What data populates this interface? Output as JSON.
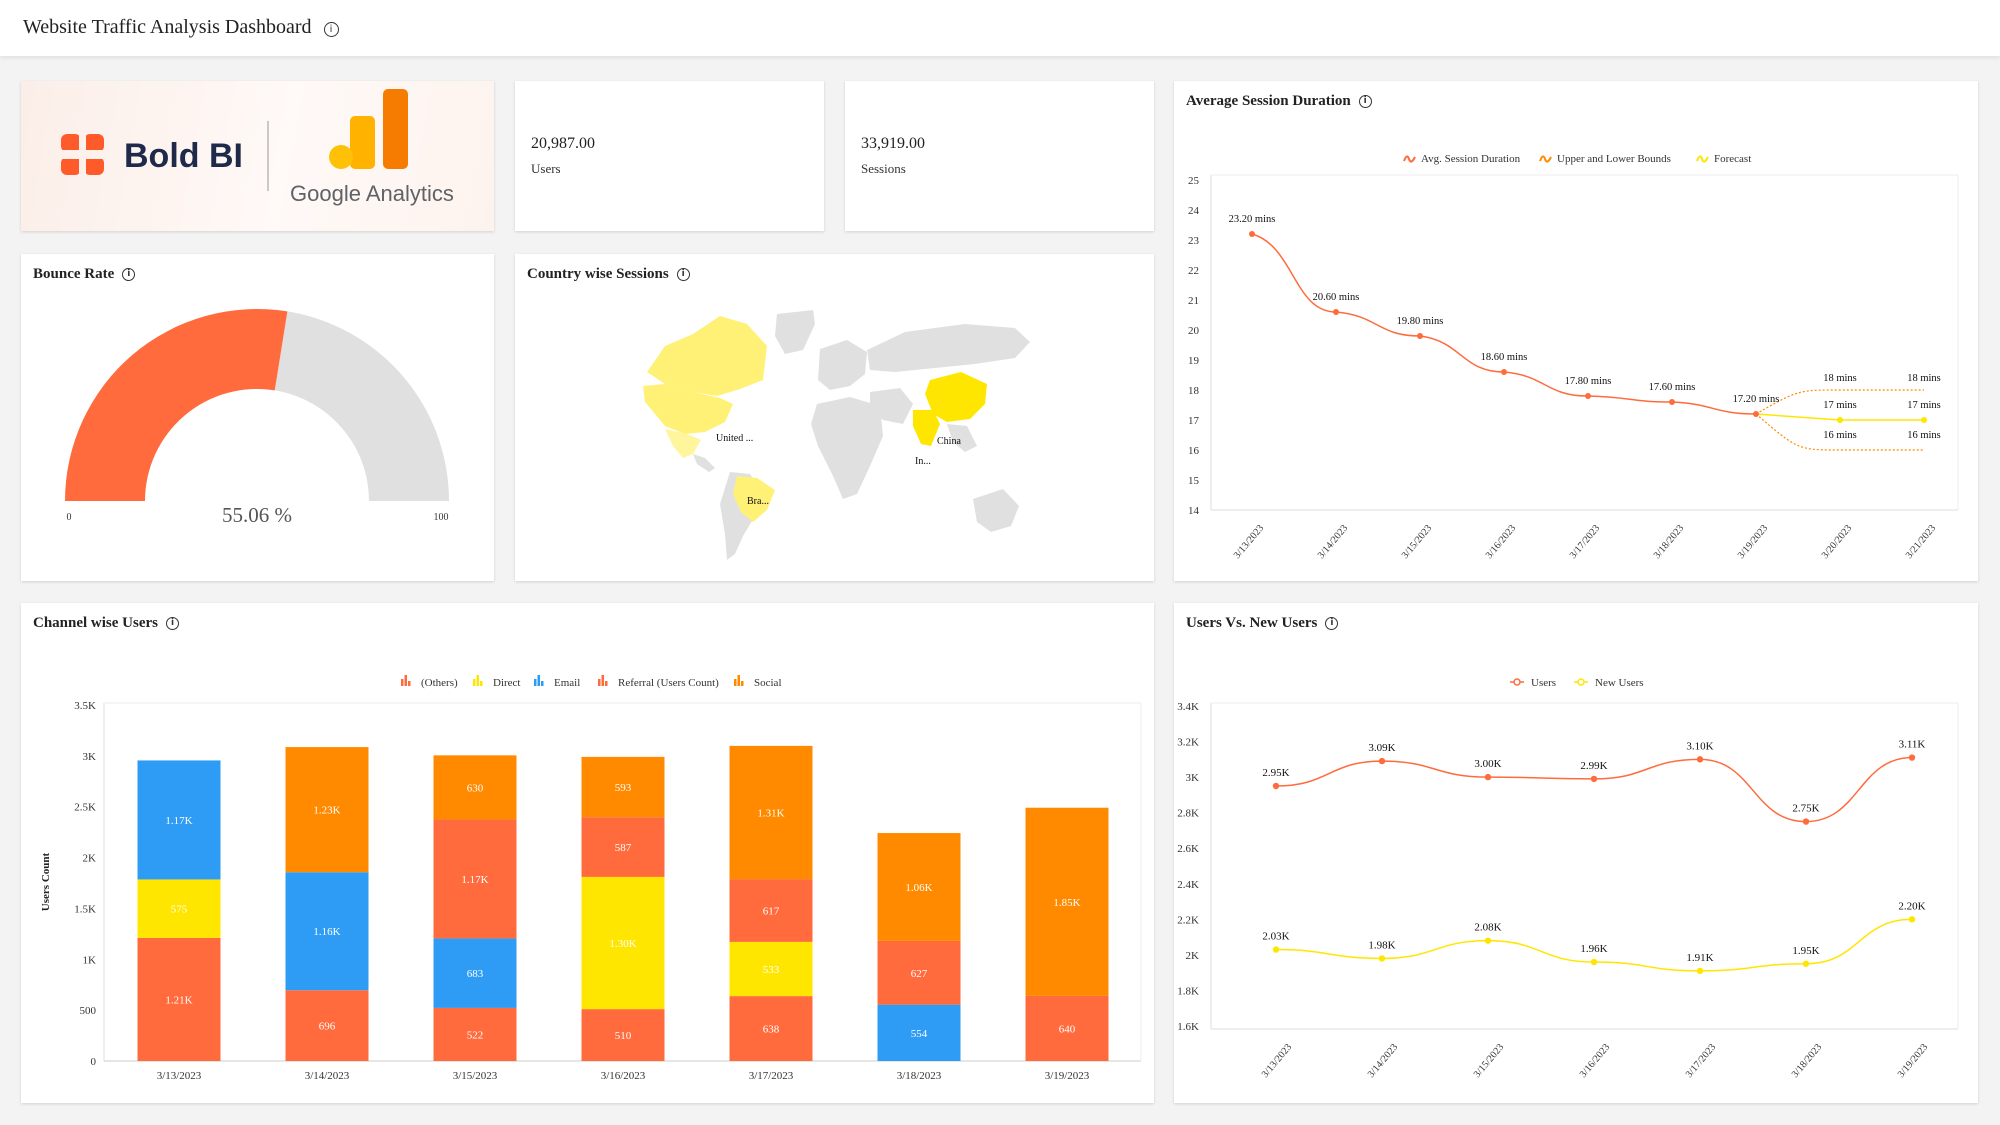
{
  "dashboard": {
    "title": "Website Traffic Analysis Dashboard"
  },
  "logos": {
    "boldbi": "Bold BI",
    "google_analytics": "Google Analytics"
  },
  "kpis": [
    {
      "value": "20,987.00",
      "label": "Users"
    },
    {
      "value": "33,919.00",
      "label": "Sessions"
    }
  ],
  "colors": {
    "orange_red": "#ff6b3d",
    "yellow": "#ffe600",
    "blue": "#2e9cf4",
    "orange": "#ff8a00",
    "gray": "#e0e0e0",
    "light_yellow": "#fff59d"
  },
  "bounce_rate": {
    "title": "Bounce Rate",
    "chart_data": {
      "type": "gauge",
      "value": 55.06,
      "min": 0,
      "max": 100,
      "display": "55.06 %",
      "min_label": "0",
      "max_label": "100"
    }
  },
  "country_sessions": {
    "title": "Country wise Sessions",
    "labels": [
      "United ...",
      "China",
      "In...",
      "Bra..."
    ]
  },
  "avg_session": {
    "title": "Average Session Duration",
    "legend": [
      "Avg. Session Duration",
      "Upper and Lower Bounds",
      "Forecast"
    ],
    "chart_data": {
      "type": "line",
      "x": [
        "3/13/2023",
        "3/14/2023",
        "3/15/2023",
        "3/16/2023",
        "3/17/2023",
        "3/18/2023",
        "3/19/2023",
        "3/20/2023",
        "3/21/2023"
      ],
      "y_ticks": [
        14,
        15,
        16,
        17,
        18,
        19,
        20,
        21,
        22,
        23,
        24,
        25
      ],
      "ylim": [
        14,
        25
      ],
      "series": [
        {
          "name": "Avg. Session Duration",
          "values": [
            23.2,
            20.6,
            19.8,
            18.6,
            17.8,
            17.6,
            17.2,
            null,
            null
          ],
          "labels": [
            "23.20 mins",
            "20.60 mins",
            "19.80 mins",
            "18.60 mins",
            "17.80 mins",
            "17.60 mins",
            "17.20 mins",
            "",
            ""
          ]
        },
        {
          "name": "Forecast",
          "values": [
            null,
            null,
            null,
            null,
            null,
            null,
            17.2,
            17,
            17
          ],
          "labels": [
            "",
            "",
            "",
            "",
            "",
            "",
            "",
            "17 mins",
            "17 mins"
          ]
        },
        {
          "name": "Upper and Lower Bounds",
          "upper": [
            null,
            null,
            null,
            null,
            null,
            null,
            17.2,
            18,
            18
          ],
          "lower": [
            null,
            null,
            null,
            null,
            null,
            null,
            17.2,
            16,
            16
          ],
          "upper_labels": [
            "",
            "",
            "",
            "",
            "",
            "",
            "",
            "18 mins",
            "18 mins"
          ],
          "lower_labels": [
            "",
            "",
            "",
            "",
            "",
            "",
            "",
            "16 mins",
            "16 mins"
          ]
        }
      ]
    }
  },
  "channel_users": {
    "title": "Channel wise Users",
    "legend": [
      "(Others)",
      "Direct",
      "Email",
      "Referral (Users Count)",
      "Social"
    ],
    "chart_data": {
      "type": "bar",
      "stacked": true,
      "categories": [
        "3/13/2023",
        "3/14/2023",
        "3/15/2023",
        "3/16/2023",
        "3/17/2023",
        "3/18/2023",
        "3/19/2023"
      ],
      "ylabel": "Users Count",
      "ylim": [
        0,
        3500
      ],
      "y_ticks": [
        "0",
        "500",
        "1K",
        "1.5K",
        "2K",
        "2.5K",
        "3K",
        "3.5K"
      ],
      "series": [
        {
          "name": "Referral (Users Count)",
          "values": [
            1210,
            696,
            522,
            510,
            638,
            627,
            640
          ],
          "labels": [
            "1.21K",
            "696",
            "522",
            "510",
            "638",
            "627",
            "640"
          ]
        },
        {
          "name": "Direct",
          "values": [
            575,
            0,
            0,
            1300,
            533,
            0,
            0
          ],
          "labels": [
            "575",
            "",
            "",
            "1.30K",
            "533",
            "",
            ""
          ]
        },
        {
          "name": "Email",
          "values": [
            1170,
            1160,
            683,
            0,
            0,
            554,
            0
          ],
          "labels": [
            "1.17K",
            "1.16K",
            "683",
            "",
            "",
            "554",
            ""
          ]
        },
        {
          "name": "(Others)",
          "values": [
            0,
            0,
            1170,
            587,
            617,
            0,
            0
          ],
          "labels": [
            "",
            "",
            "1.17K",
            "587",
            "617",
            "",
            ""
          ]
        },
        {
          "name": "Social",
          "values": [
            0,
            1230,
            630,
            593,
            1310,
            1060,
            1850
          ],
          "labels": [
            "",
            "1.23K",
            "630",
            "593",
            "1.31K",
            "1.06K",
            "1.85K"
          ]
        }
      ],
      "stack_order": [
        [
          0,
          1,
          2
        ],
        [
          0,
          2,
          4
        ],
        [
          0,
          2,
          3,
          4
        ],
        [
          0,
          1,
          3,
          4
        ],
        [
          0,
          1,
          3,
          4
        ],
        [
          2,
          0,
          4
        ],
        [
          0,
          4
        ]
      ]
    }
  },
  "users_new": {
    "title": "Users Vs. New Users",
    "legend": [
      "Users",
      "New Users"
    ],
    "chart_data": {
      "type": "line",
      "x": [
        "3/13/2023",
        "3/14/2023",
        "3/15/2023",
        "3/16/2023",
        "3/17/2023",
        "3/18/2023",
        "3/19/2023"
      ],
      "ylim": [
        1600,
        3400
      ],
      "y_ticks": [
        "1.6K",
        "1.8K",
        "2K",
        "2.2K",
        "2.4K",
        "2.6K",
        "2.8K",
        "3K",
        "3.2K",
        "3.4K"
      ],
      "series": [
        {
          "name": "Users",
          "values": [
            2950,
            3090,
            3000,
            2990,
            3100,
            2750,
            3110
          ],
          "labels": [
            "2.95K",
            "3.09K",
            "3.00K",
            "2.99K",
            "3.10K",
            "2.75K",
            "3.11K"
          ]
        },
        {
          "name": "New Users",
          "values": [
            2030,
            1980,
            2080,
            1960,
            1910,
            1950,
            2200
          ],
          "labels": [
            "2.03K",
            "1.98K",
            "2.08K",
            "1.96K",
            "1.91K",
            "1.95K",
            "2.20K"
          ]
        }
      ]
    }
  }
}
